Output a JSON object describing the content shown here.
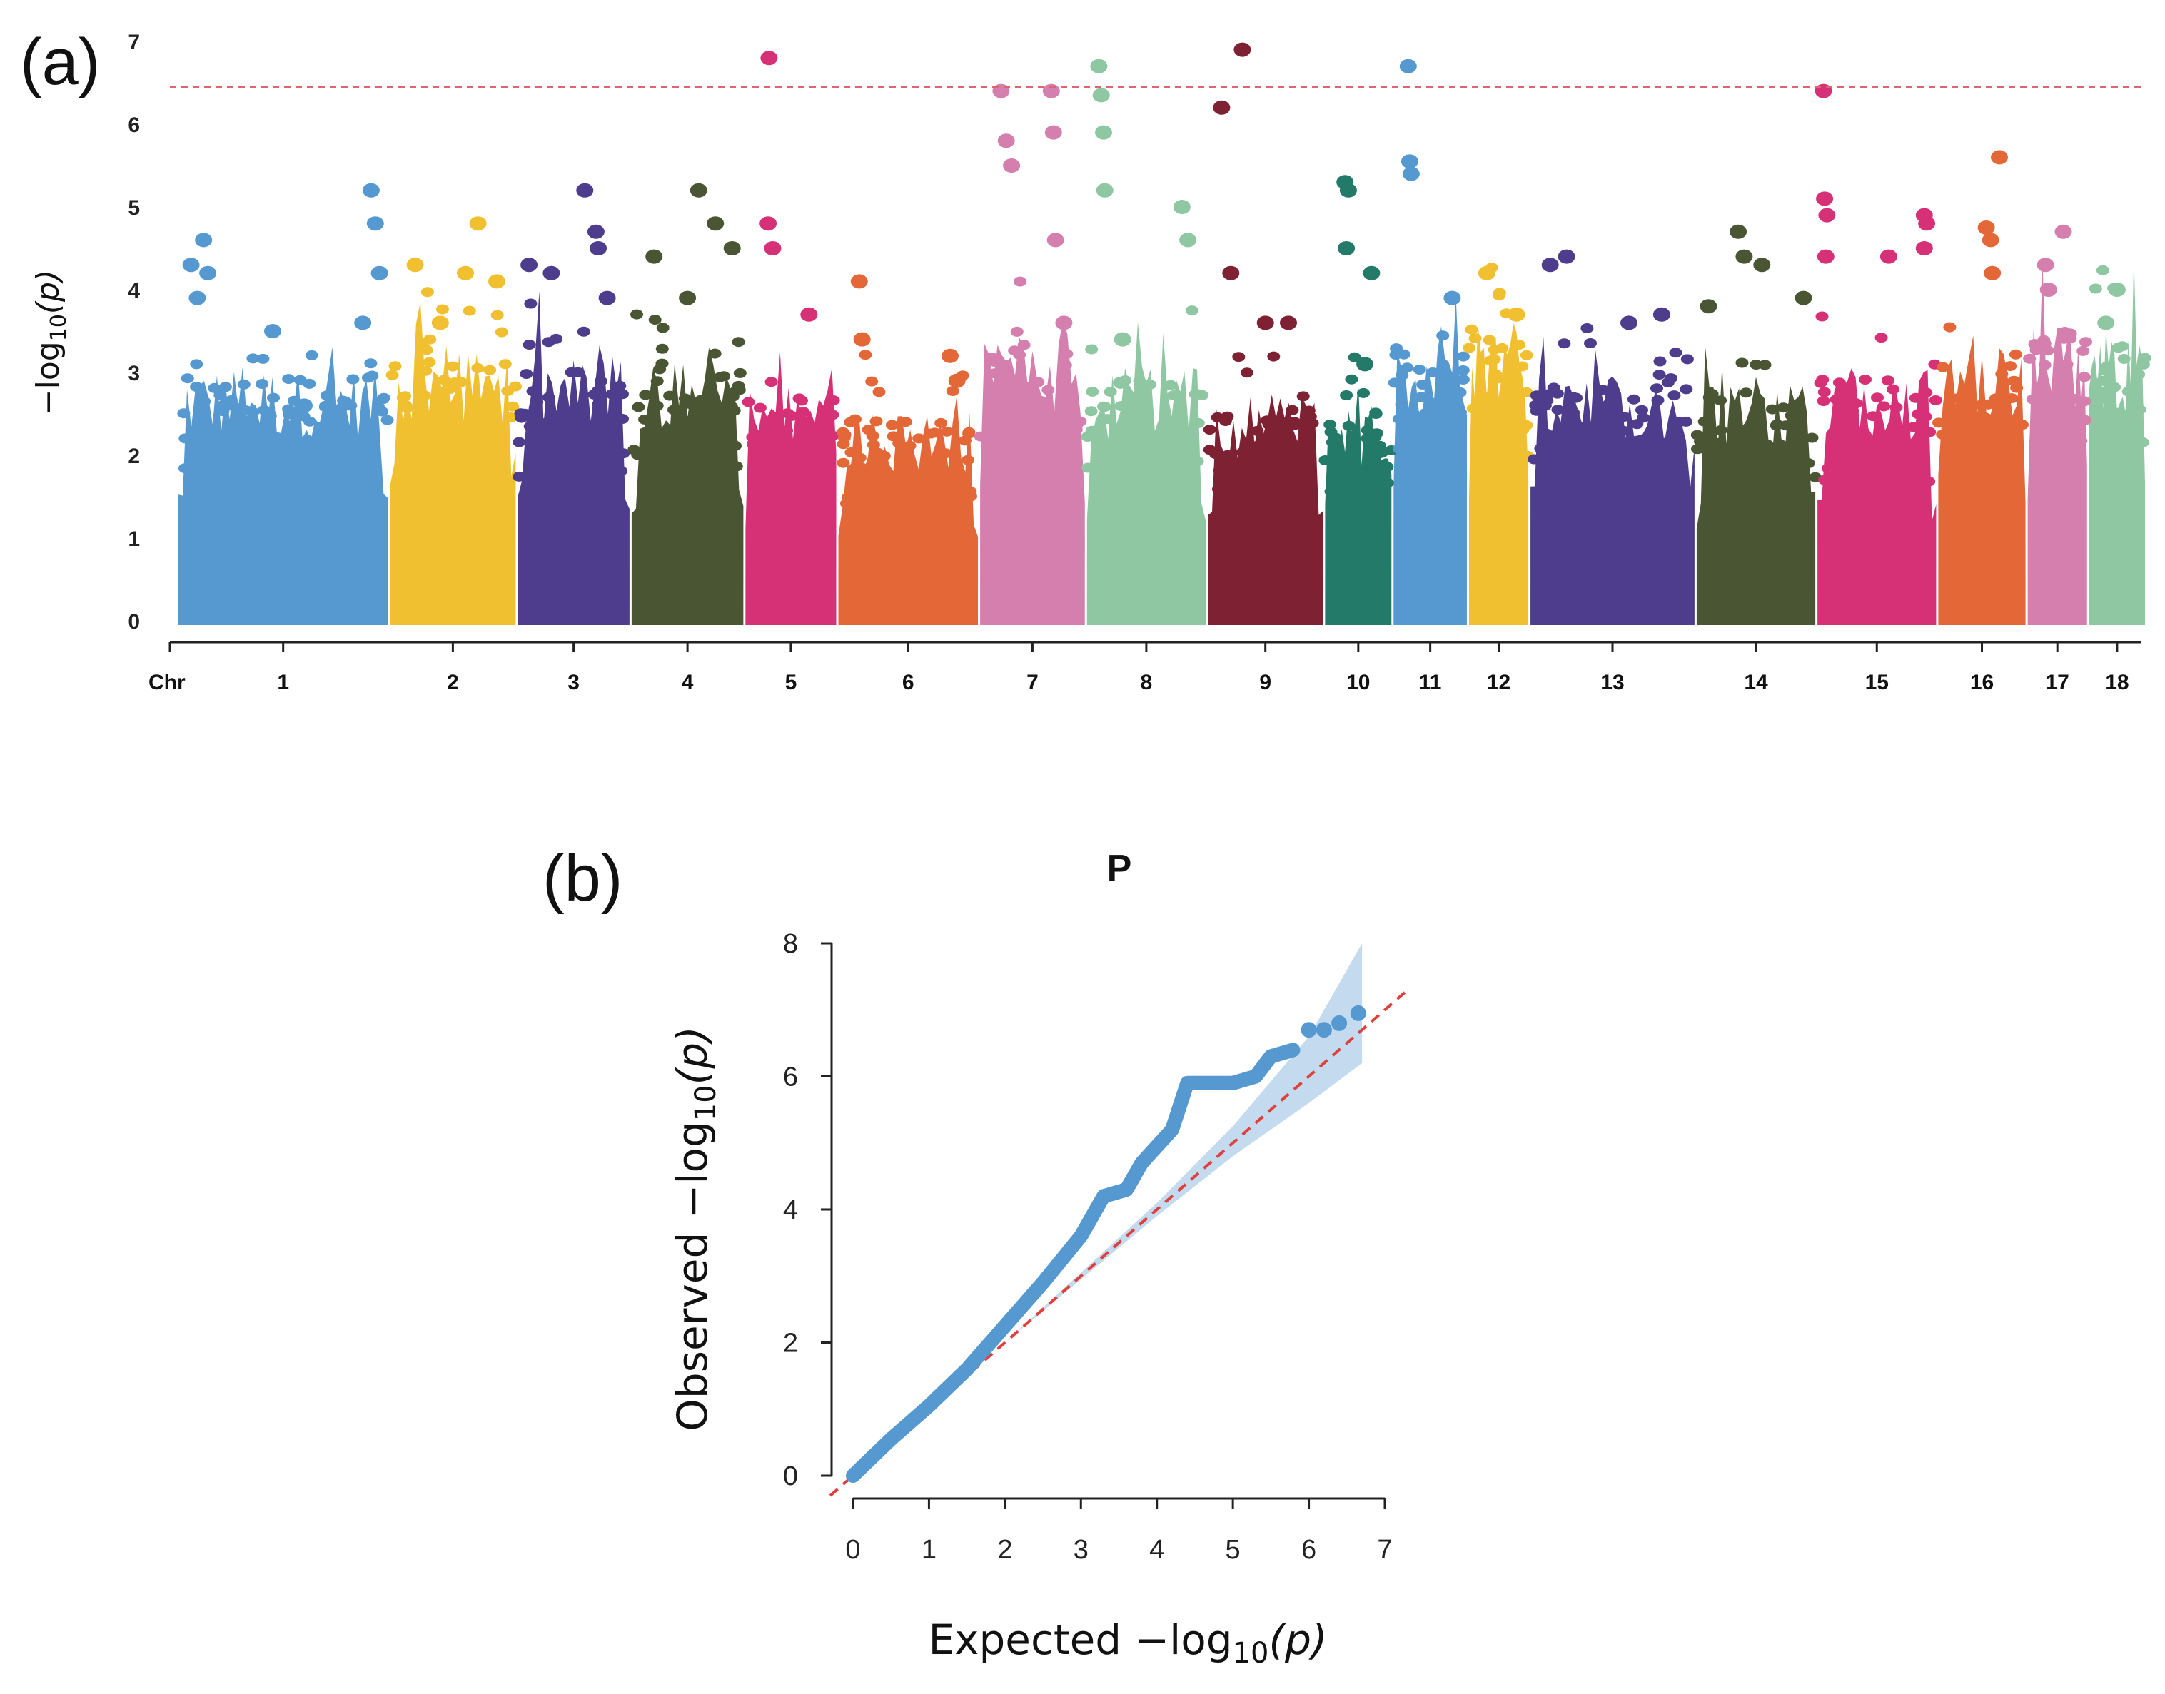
{
  "chart_data": [
    {
      "panel_label": "(a)",
      "type": "scatter",
      "subtype": "manhattan",
      "ylabel": "−log",
      "ylabel_sub": "10",
      "ylabel_var": "(p)",
      "ylim": [
        0,
        7
      ],
      "yticks": [
        "0",
        "1",
        "2",
        "3",
        "4",
        "5",
        "6",
        "7"
      ],
      "x_axis_name": "Chr",
      "threshold": 6.45,
      "threshold_color": "#e0646e",
      "chromosomes": [
        {
          "label": "1",
          "color": "#5599d0",
          "base": 2.8,
          "points": [
            [
              0.06,
              4.3
            ],
            [
              0.12,
              4.6
            ],
            [
              0.14,
              4.2
            ],
            [
              0.09,
              3.9
            ],
            [
              0.45,
              3.5
            ],
            [
              0.92,
              5.2
            ],
            [
              0.94,
              4.8
            ],
            [
              0.96,
              4.2
            ],
            [
              0.88,
              3.6
            ],
            [
              0.6,
              2.6
            ]
          ]
        },
        {
          "label": "2",
          "color": "#f0c030",
          "base": 3.0,
          "points": [
            [
              0.2,
              4.3
            ],
            [
              0.7,
              4.8
            ],
            [
              0.6,
              4.2
            ],
            [
              0.85,
              4.1
            ],
            [
              0.4,
              3.6
            ]
          ]
        },
        {
          "label": "3",
          "color": "#4e3d8c",
          "base": 2.9,
          "points": [
            [
              0.1,
              4.3
            ],
            [
              0.6,
              5.2
            ],
            [
              0.7,
              4.7
            ],
            [
              0.72,
              4.5
            ],
            [
              0.3,
              4.2
            ],
            [
              0.8,
              3.9
            ]
          ]
        },
        {
          "label": "4",
          "color": "#4a5534",
          "base": 2.9,
          "points": [
            [
              0.2,
              4.4
            ],
            [
              0.6,
              5.2
            ],
            [
              0.75,
              4.8
            ],
            [
              0.9,
              4.5
            ],
            [
              0.5,
              3.9
            ]
          ]
        },
        {
          "label": "5",
          "color": "#d63076",
          "base": 2.6,
          "points": [
            [
              0.25,
              4.8
            ],
            [
              0.26,
              6.8
            ],
            [
              0.3,
              4.5
            ],
            [
              0.7,
              3.7
            ]
          ]
        },
        {
          "label": "6",
          "color": "#e46837",
          "base": 2.3,
          "points": [
            [
              0.15,
              4.1
            ],
            [
              0.17,
              3.4
            ],
            [
              0.8,
              3.2
            ],
            [
              0.85,
              2.9
            ]
          ]
        },
        {
          "label": "7",
          "color": "#d47fae",
          "base": 3.2,
          "points": [
            [
              0.2,
              6.4
            ],
            [
              0.25,
              5.8
            ],
            [
              0.3,
              5.5
            ],
            [
              0.68,
              6.4
            ],
            [
              0.7,
              5.9
            ],
            [
              0.72,
              4.6
            ],
            [
              0.8,
              3.6
            ]
          ]
        },
        {
          "label": "8",
          "color": "#8ec7a2",
          "base": 2.8,
          "points": [
            [
              0.1,
              6.7
            ],
            [
              0.12,
              6.35
            ],
            [
              0.14,
              5.9
            ],
            [
              0.15,
              5.2
            ],
            [
              0.3,
              3.4
            ],
            [
              0.8,
              5.0
            ],
            [
              0.85,
              4.6
            ]
          ]
        },
        {
          "label": "9",
          "color": "#7d2133",
          "base": 2.5,
          "points": [
            [
              0.12,
              6.2
            ],
            [
              0.3,
              6.9
            ],
            [
              0.2,
              4.2
            ],
            [
              0.5,
              3.6
            ],
            [
              0.7,
              3.6
            ]
          ]
        },
        {
          "label": "10",
          "color": "#237a68",
          "base": 2.4,
          "points": [
            [
              0.3,
              5.3
            ],
            [
              0.35,
              5.2
            ],
            [
              0.32,
              4.5
            ],
            [
              0.7,
              4.2
            ],
            [
              0.6,
              3.1
            ]
          ]
        },
        {
          "label": "11",
          "color": "#5599d0",
          "base": 3.0,
          "points": [
            [
              0.2,
              6.7
            ],
            [
              0.22,
              5.55
            ],
            [
              0.24,
              5.4
            ],
            [
              0.8,
              3.9
            ]
          ]
        },
        {
          "label": "12",
          "color": "#f0c030",
          "base": 3.3,
          "points": [
            [
              0.3,
              4.2
            ],
            [
              0.8,
              3.7
            ]
          ]
        },
        {
          "label": "13",
          "color": "#4e3d8c",
          "base": 2.7,
          "points": [
            [
              0.12,
              4.3
            ],
            [
              0.22,
              4.4
            ],
            [
              0.6,
              3.6
            ],
            [
              0.8,
              3.7
            ]
          ]
        },
        {
          "label": "14",
          "color": "#4a5534",
          "base": 2.6,
          "points": [
            [
              0.1,
              3.8
            ],
            [
              0.35,
              4.7
            ],
            [
              0.4,
              4.4
            ],
            [
              0.55,
              4.3
            ],
            [
              0.9,
              3.9
            ]
          ]
        },
        {
          "label": "15",
          "color": "#d63076",
          "base": 2.8,
          "points": [
            [
              0.05,
              6.4
            ],
            [
              0.06,
              5.1
            ],
            [
              0.08,
              4.9
            ],
            [
              0.07,
              4.4
            ],
            [
              0.9,
              4.9
            ],
            [
              0.92,
              4.8
            ],
            [
              0.9,
              4.5
            ],
            [
              0.6,
              4.4
            ]
          ]
        },
        {
          "label": "16",
          "color": "#e46837",
          "base": 3.0,
          "points": [
            [
              0.7,
              5.6
            ],
            [
              0.55,
              4.75
            ],
            [
              0.6,
              4.6
            ],
            [
              0.62,
              4.2
            ]
          ]
        },
        {
          "label": "17",
          "color": "#d47fae",
          "base": 3.3,
          "points": [
            [
              0.3,
              4.3
            ],
            [
              0.6,
              4.7
            ],
            [
              0.35,
              4.0
            ]
          ]
        },
        {
          "label": "18",
          "color": "#8ec7a2",
          "base": 3.2,
          "points": [
            [
              0.5,
              4.0
            ],
            [
              0.3,
              3.6
            ]
          ]
        }
      ]
    },
    {
      "panel_label": "(b)",
      "type": "scatter",
      "subtype": "qq",
      "title": "P",
      "xlabel": "Expected  −log",
      "xlabel_sub": "10",
      "xlabel_var": "(p)",
      "ylabel": "Observed  −log",
      "ylabel_sub": "10",
      "ylabel_var": "(p)",
      "xlim": [
        0,
        7
      ],
      "ylim": [
        0,
        8
      ],
      "xticks": [
        "0",
        "1",
        "2",
        "3",
        "4",
        "5",
        "6",
        "7"
      ],
      "yticks": [
        "0",
        "2",
        "4",
        "6",
        "8"
      ],
      "point_color": "#5599d0",
      "band_color": "#b8d3ec",
      "line_color": "#e0403c",
      "observed_curve": [
        [
          0,
          0
        ],
        [
          0.5,
          0.55
        ],
        [
          1,
          1.05
        ],
        [
          1.5,
          1.6
        ],
        [
          2,
          2.25
        ],
        [
          2.5,
          2.9
        ],
        [
          3,
          3.6
        ],
        [
          3.3,
          4.2
        ],
        [
          3.6,
          4.3
        ],
        [
          3.8,
          4.7
        ],
        [
          4.2,
          5.2
        ],
        [
          4.4,
          5.9
        ],
        [
          5.0,
          5.9
        ],
        [
          5.3,
          6.0
        ],
        [
          5.5,
          6.3
        ],
        [
          5.8,
          6.4
        ]
      ],
      "tail_points": [
        [
          6.0,
          6.7
        ],
        [
          6.2,
          6.7
        ],
        [
          6.4,
          6.8
        ],
        [
          6.65,
          6.95
        ]
      ],
      "ci_band": {
        "x": [
          0,
          1,
          2,
          3,
          4,
          5,
          6,
          6.7
        ],
        "lower": [
          0,
          1,
          2,
          2.95,
          3.9,
          4.8,
          5.6,
          6.2
        ],
        "upper": [
          0,
          1,
          2,
          3.05,
          4.1,
          5.25,
          6.6,
          8.0
        ]
      }
    }
  ]
}
